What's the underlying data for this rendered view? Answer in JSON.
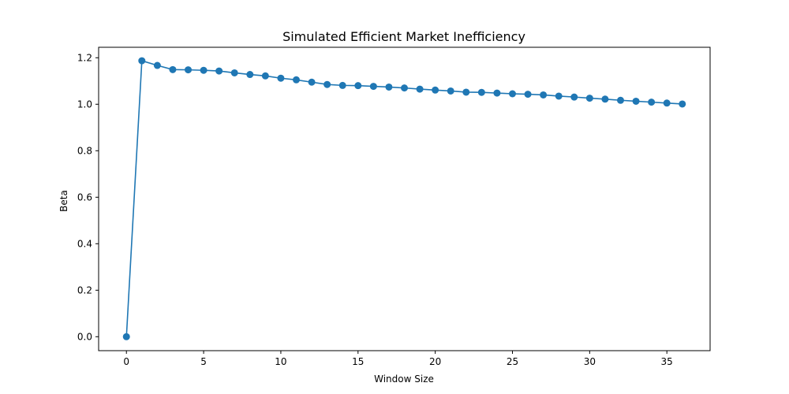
{
  "chart_data": {
    "type": "line",
    "title": "Simulated Efficient Market Inefficiency",
    "xlabel": "Window Size",
    "ylabel": "Beta",
    "xlim": [
      -1.8,
      37.8
    ],
    "ylim": [
      -0.06,
      1.245
    ],
    "xticks": [
      0,
      5,
      10,
      15,
      20,
      25,
      30,
      35
    ],
    "yticks": [
      0.0,
      0.2,
      0.4,
      0.6,
      0.8,
      1.0,
      1.2
    ],
    "grid": false,
    "color": "#1f77b4",
    "marker": "circle",
    "series": [
      {
        "x": [
          0,
          1,
          2,
          3,
          4,
          5,
          6,
          7,
          8,
          9,
          10,
          11,
          12,
          13,
          14,
          15,
          16,
          17,
          18,
          19,
          20,
          21,
          22,
          23,
          24,
          25,
          26,
          27,
          28,
          29,
          30,
          31,
          32,
          33,
          34,
          35,
          36
        ],
        "values": [
          0.0,
          1.187,
          1.167,
          1.149,
          1.148,
          1.146,
          1.143,
          1.135,
          1.128,
          1.122,
          1.112,
          1.105,
          1.095,
          1.085,
          1.081,
          1.08,
          1.077,
          1.074,
          1.07,
          1.065,
          1.061,
          1.057,
          1.052,
          1.051,
          1.048,
          1.045,
          1.043,
          1.04,
          1.035,
          1.031,
          1.026,
          1.022,
          1.017,
          1.013,
          1.009,
          1.005,
          1.001
        ]
      }
    ]
  }
}
